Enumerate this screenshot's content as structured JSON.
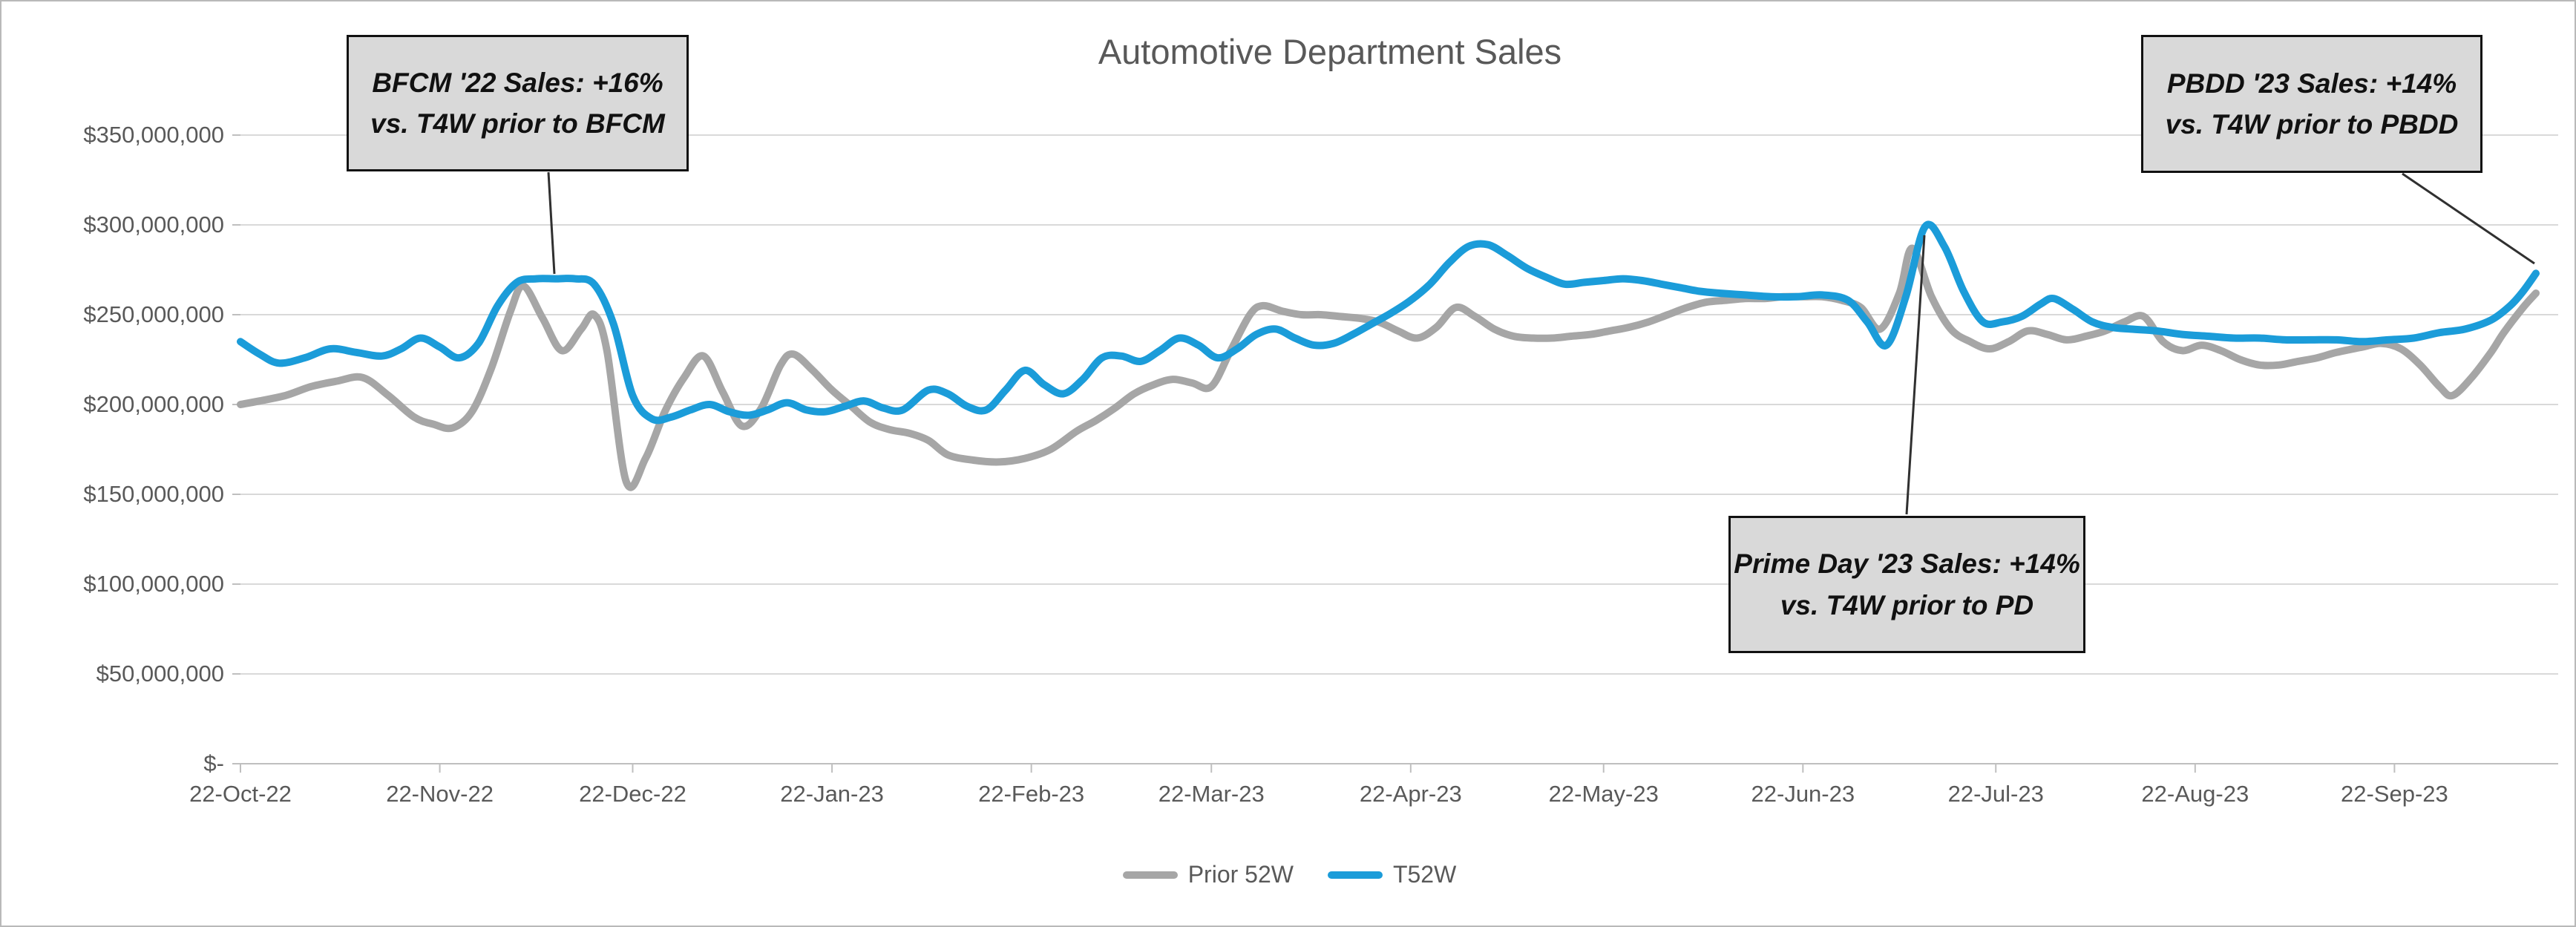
{
  "page": {
    "title": "Automotive Department Sales"
  },
  "chart_data": {
    "type": "line",
    "title": "Automotive Department Sales",
    "unit": "USD",
    "value_scale": "millions",
    "grid": true,
    "smooth_lines": true,
    "y_axis": {
      "min": 0,
      "max": 350000000,
      "step": 50000000,
      "tick_labels": [
        "$-",
        "$50,000,000",
        "$100,000,000",
        "$150,000,000",
        "$200,000,000",
        "$250,000,000",
        "$300,000,000",
        "$350,000,000"
      ]
    },
    "x_axis": {
      "labels": [
        {
          "label": "22-Oct-22",
          "day": 0
        },
        {
          "label": "22-Nov-22",
          "day": 31
        },
        {
          "label": "22-Dec-22",
          "day": 61
        },
        {
          "label": "22-Jan-23",
          "day": 92
        },
        {
          "label": "22-Feb-23",
          "day": 123
        },
        {
          "label": "22-Mar-23",
          "day": 151
        },
        {
          "label": "22-Apr-23",
          "day": 182
        },
        {
          "label": "22-May-23",
          "day": 212
        },
        {
          "label": "22-Jun-23",
          "day": 243
        },
        {
          "label": "22-Jul-23",
          "day": 273
        },
        {
          "label": "22-Aug-23",
          "day": 304
        },
        {
          "label": "22-Sep-23",
          "day": 335
        }
      ],
      "span_days": 357
    },
    "legend": {
      "position": "bottom"
    },
    "series": [
      {
        "name": "Prior 52W",
        "color": "#a6a6a6",
        "points": [
          [
            0,
            200
          ],
          [
            3,
            202
          ],
          [
            7,
            205
          ],
          [
            11,
            210
          ],
          [
            15,
            213
          ],
          [
            19,
            215
          ],
          [
            23,
            205
          ],
          [
            27,
            193
          ],
          [
            30,
            189
          ],
          [
            33,
            187
          ],
          [
            36,
            196
          ],
          [
            39,
            220
          ],
          [
            42,
            252
          ],
          [
            44,
            266
          ],
          [
            47,
            248
          ],
          [
            50,
            230
          ],
          [
            53,
            242
          ],
          [
            55,
            250
          ],
          [
            57,
            230
          ],
          [
            60,
            157
          ],
          [
            63,
            170
          ],
          [
            66,
            196
          ],
          [
            69,
            215
          ],
          [
            72,
            227
          ],
          [
            75,
            207
          ],
          [
            78,
            188
          ],
          [
            81,
            198
          ],
          [
            84,
            222
          ],
          [
            86,
            228
          ],
          [
            89,
            219
          ],
          [
            92,
            208
          ],
          [
            95,
            199
          ],
          [
            98,
            190
          ],
          [
            101,
            186
          ],
          [
            104,
            184
          ],
          [
            107,
            180
          ],
          [
            110,
            172
          ],
          [
            114,
            169
          ],
          [
            118,
            168
          ],
          [
            122,
            170
          ],
          [
            126,
            175
          ],
          [
            130,
            185
          ],
          [
            133,
            191
          ],
          [
            136,
            198
          ],
          [
            139,
            206
          ],
          [
            142,
            211
          ],
          [
            145,
            214
          ],
          [
            148,
            212
          ],
          [
            151,
            210
          ],
          [
            154,
            230
          ],
          [
            157,
            250
          ],
          [
            159,
            255
          ],
          [
            162,
            252
          ],
          [
            165,
            250
          ],
          [
            168,
            250
          ],
          [
            171,
            249
          ],
          [
            174,
            248
          ],
          [
            177,
            246
          ],
          [
            180,
            241
          ],
          [
            183,
            237
          ],
          [
            186,
            243
          ],
          [
            189,
            254
          ],
          [
            192,
            249
          ],
          [
            195,
            242
          ],
          [
            198,
            238
          ],
          [
            201,
            237
          ],
          [
            204,
            237
          ],
          [
            207,
            238
          ],
          [
            210,
            239
          ],
          [
            213,
            241
          ],
          [
            216,
            243
          ],
          [
            219,
            246
          ],
          [
            222,
            250
          ],
          [
            225,
            254
          ],
          [
            228,
            257
          ],
          [
            231,
            258
          ],
          [
            234,
            259
          ],
          [
            237,
            259
          ],
          [
            240,
            260
          ],
          [
            243,
            260
          ],
          [
            246,
            260
          ],
          [
            249,
            258
          ],
          [
            252,
            254
          ],
          [
            255,
            242
          ],
          [
            258,
            262
          ],
          [
            260,
            287
          ],
          [
            263,
            260
          ],
          [
            266,
            242
          ],
          [
            269,
            235
          ],
          [
            272,
            231
          ],
          [
            275,
            235
          ],
          [
            278,
            241
          ],
          [
            281,
            239
          ],
          [
            284,
            236
          ],
          [
            287,
            238
          ],
          [
            290,
            241
          ],
          [
            293,
            246
          ],
          [
            296,
            249
          ],
          [
            299,
            235
          ],
          [
            302,
            230
          ],
          [
            305,
            233
          ],
          [
            308,
            230
          ],
          [
            311,
            225
          ],
          [
            314,
            222
          ],
          [
            317,
            222
          ],
          [
            320,
            224
          ],
          [
            323,
            226
          ],
          [
            326,
            229
          ],
          [
            330,
            232
          ],
          [
            333,
            234
          ],
          [
            336,
            231
          ],
          [
            339,
            222
          ],
          [
            342,
            210
          ],
          [
            344,
            205
          ],
          [
            347,
            215
          ],
          [
            350,
            229
          ],
          [
            352,
            240
          ],
          [
            355,
            254
          ],
          [
            357,
            262
          ]
        ]
      },
      {
        "name": "T52W",
        "color": "#1b9cd9",
        "points": [
          [
            0,
            235
          ],
          [
            3,
            228
          ],
          [
            6,
            223
          ],
          [
            10,
            226
          ],
          [
            14,
            231
          ],
          [
            18,
            229
          ],
          [
            22,
            227
          ],
          [
            25,
            231
          ],
          [
            28,
            237
          ],
          [
            31,
            232
          ],
          [
            34,
            226
          ],
          [
            37,
            234
          ],
          [
            40,
            255
          ],
          [
            43,
            268
          ],
          [
            46,
            270
          ],
          [
            49,
            270
          ],
          [
            52,
            270
          ],
          [
            55,
            267
          ],
          [
            58,
            245
          ],
          [
            61,
            205
          ],
          [
            64,
            192
          ],
          [
            67,
            193
          ],
          [
            70,
            197
          ],
          [
            73,
            200
          ],
          [
            76,
            196
          ],
          [
            79,
            194
          ],
          [
            82,
            197
          ],
          [
            85,
            201
          ],
          [
            88,
            197
          ],
          [
            91,
            196
          ],
          [
            94,
            199
          ],
          [
            97,
            202
          ],
          [
            100,
            198
          ],
          [
            103,
            197
          ],
          [
            107,
            208
          ],
          [
            110,
            206
          ],
          [
            113,
            199
          ],
          [
            116,
            197
          ],
          [
            119,
            208
          ],
          [
            122,
            219
          ],
          [
            125,
            211
          ],
          [
            128,
            206
          ],
          [
            131,
            214
          ],
          [
            134,
            226
          ],
          [
            137,
            227
          ],
          [
            140,
            224
          ],
          [
            143,
            230
          ],
          [
            146,
            237
          ],
          [
            149,
            233
          ],
          [
            152,
            226
          ],
          [
            155,
            231
          ],
          [
            158,
            239
          ],
          [
            161,
            242
          ],
          [
            164,
            237
          ],
          [
            167,
            233
          ],
          [
            170,
            234
          ],
          [
            173,
            239
          ],
          [
            176,
            245
          ],
          [
            179,
            251
          ],
          [
            182,
            258
          ],
          [
            185,
            267
          ],
          [
            188,
            279
          ],
          [
            191,
            288
          ],
          [
            194,
            289
          ],
          [
            197,
            283
          ],
          [
            200,
            276
          ],
          [
            203,
            271
          ],
          [
            206,
            267
          ],
          [
            209,
            268
          ],
          [
            212,
            269
          ],
          [
            215,
            270
          ],
          [
            218,
            269
          ],
          [
            221,
            267
          ],
          [
            224,
            265
          ],
          [
            227,
            263
          ],
          [
            230,
            262
          ],
          [
            234,
            261
          ],
          [
            238,
            260
          ],
          [
            242,
            260
          ],
          [
            246,
            261
          ],
          [
            250,
            258
          ],
          [
            253,
            246
          ],
          [
            256,
            233
          ],
          [
            259,
            260
          ],
          [
            262,
            299
          ],
          [
            265,
            288
          ],
          [
            268,
            263
          ],
          [
            271,
            246
          ],
          [
            274,
            246
          ],
          [
            277,
            249
          ],
          [
            280,
            256
          ],
          [
            282,
            259
          ],
          [
            285,
            253
          ],
          [
            288,
            246
          ],
          [
            291,
            243
          ],
          [
            294,
            242
          ],
          [
            298,
            241
          ],
          [
            302,
            239
          ],
          [
            306,
            238
          ],
          [
            310,
            237
          ],
          [
            314,
            237
          ],
          [
            318,
            236
          ],
          [
            322,
            236
          ],
          [
            326,
            236
          ],
          [
            330,
            235
          ],
          [
            334,
            236
          ],
          [
            338,
            237
          ],
          [
            342,
            240
          ],
          [
            346,
            242
          ],
          [
            350,
            247
          ],
          [
            353,
            255
          ],
          [
            355,
            263
          ],
          [
            357,
            273
          ]
        ]
      }
    ],
    "annotations": [
      {
        "id": "bfcm",
        "line1": "BFCM '22 Sales: +16%",
        "line2": "vs. T4W prior to BFCM"
      },
      {
        "id": "prime-day",
        "line1": "Prime Day '23 Sales: +14%",
        "line2": "vs. T4W prior to PD"
      },
      {
        "id": "pbdd",
        "line1": "PBDD '23 Sales: +14%",
        "line2": "vs. T4W prior to PBDD"
      }
    ],
    "colors": {
      "gridline": "#d9d9d9",
      "axis_line": "#bfbfbf",
      "axis_text": "#595959",
      "title_text": "#595959",
      "annotation_fill": "#d9d9d9",
      "annotation_border": "#111111",
      "callout_line": "#303030"
    }
  }
}
